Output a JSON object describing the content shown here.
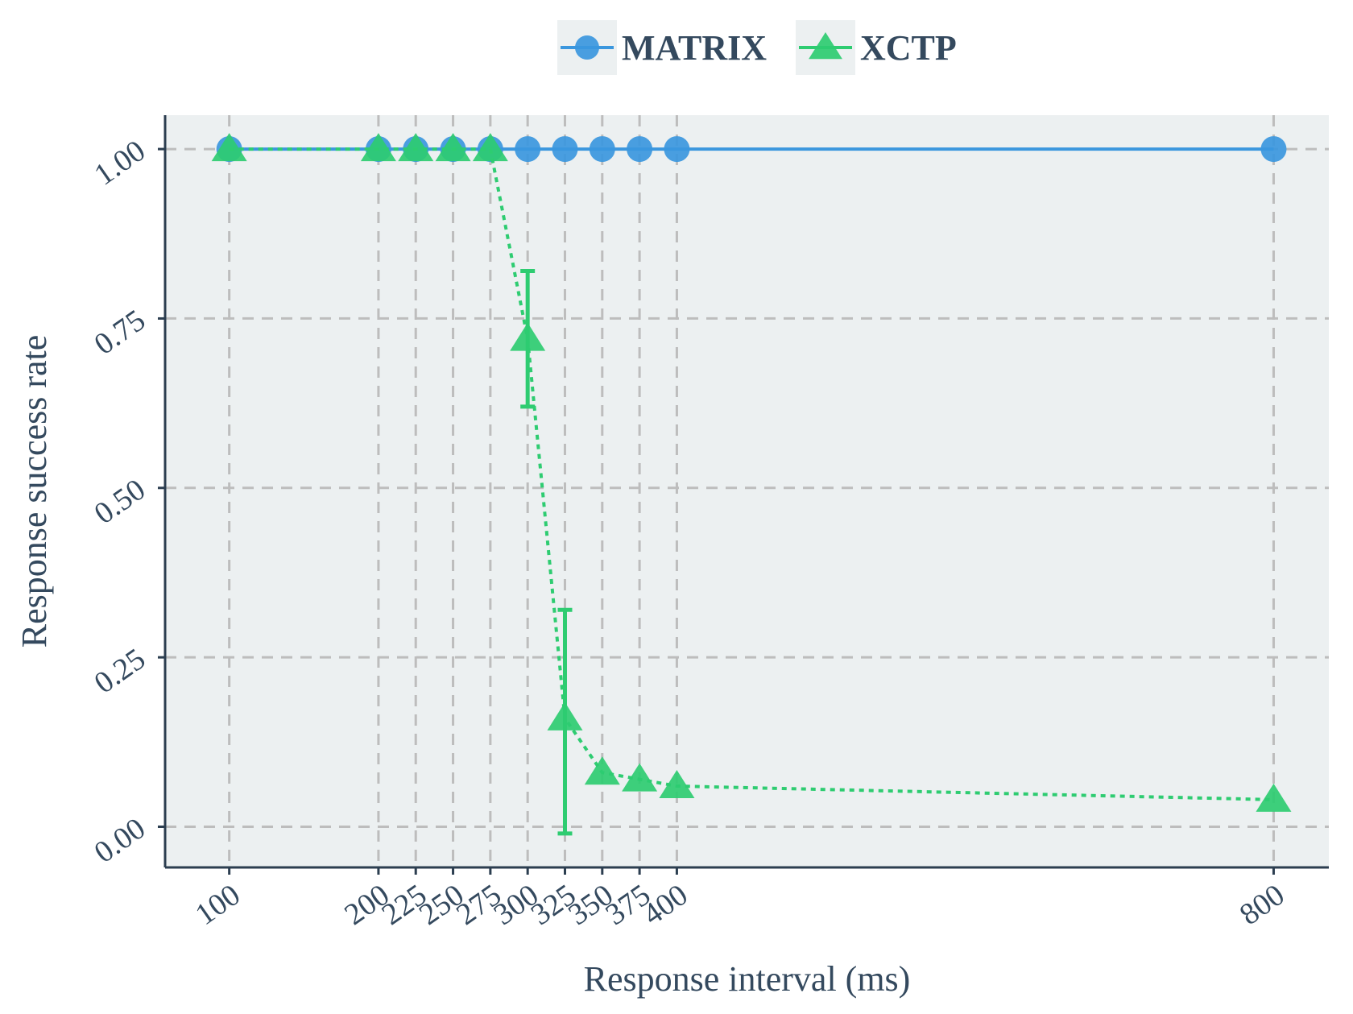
{
  "chart_data": {
    "type": "line",
    "title": "",
    "xlabel": "Response interval (ms)",
    "ylabel": "Response success rate",
    "x_ticks": [
      100,
      200,
      225,
      250,
      275,
      300,
      325,
      350,
      375,
      400,
      800
    ],
    "y_ticks": [
      "0.00",
      "0.25",
      "0.50",
      "0.75",
      "1.00"
    ],
    "xlim": [
      57,
      837
    ],
    "ylim": [
      -0.06,
      1.05
    ],
    "grid": true,
    "legend_position": "top",
    "series": [
      {
        "name": "MATRIX",
        "color": "#3b97de",
        "marker": "circle",
        "line_style": "solid",
        "x": [
          100,
          200,
          225,
          250,
          275,
          300,
          325,
          350,
          375,
          400,
          800
        ],
        "y": [
          1.0,
          1.0,
          1.0,
          1.0,
          1.0,
          1.0,
          1.0,
          1.0,
          1.0,
          1.0,
          1.0
        ]
      },
      {
        "name": "XCTP",
        "color": "#2ecc71",
        "marker": "triangle",
        "line_style": "dotted",
        "x": [
          100,
          200,
          225,
          250,
          275,
          300,
          325,
          350,
          375,
          400,
          800
        ],
        "y": [
          1.0,
          1.0,
          1.0,
          1.0,
          1.0,
          0.72,
          0.16,
          0.08,
          0.07,
          0.06,
          0.04
        ],
        "error_low": [
          null,
          null,
          null,
          null,
          null,
          0.62,
          -0.01,
          null,
          null,
          null,
          null
        ],
        "error_high": [
          null,
          null,
          null,
          null,
          null,
          0.82,
          0.32,
          null,
          null,
          null,
          null
        ]
      }
    ]
  },
  "colors": {
    "panel_background": "#ecf0f1",
    "grid": "#bdbdbd",
    "axis": "#2c3e50",
    "text": "#34495e"
  }
}
